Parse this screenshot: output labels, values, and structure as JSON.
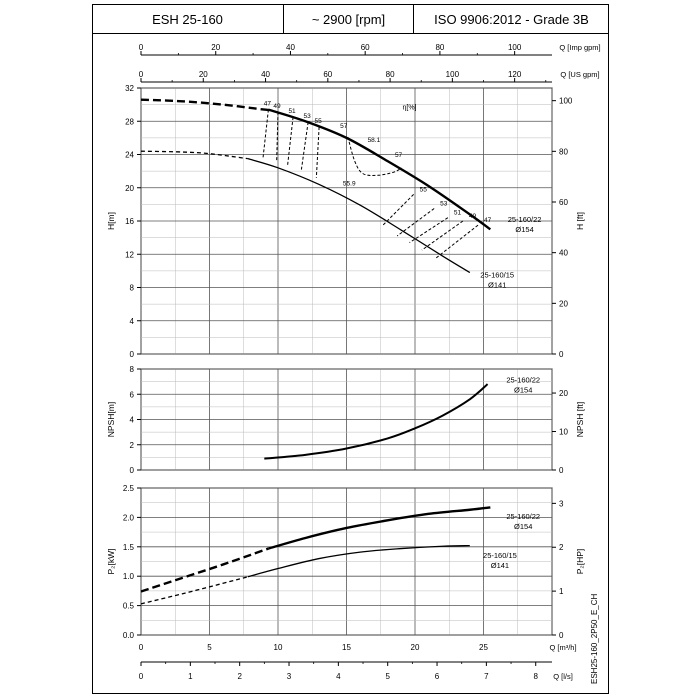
{
  "header": {
    "model": "ESH 25-160",
    "speed": "~ 2900 [rpm]",
    "standard": "ISO 9906:2012 - Grade 3B"
  },
  "doc_code": "ESH25-160_2P50_E_CH",
  "chart_data": [
    {
      "type": "line",
      "panel": "head",
      "top_axes": [
        {
          "label": "Q [Imp gpm]",
          "range": [
            0,
            110
          ],
          "ticks": [
            0,
            20,
            40,
            60,
            80,
            100
          ]
        },
        {
          "label": "Q [US gpm]",
          "range": [
            0,
            132
          ],
          "ticks": [
            0,
            20,
            40,
            60,
            80,
            100,
            120
          ]
        }
      ],
      "x_range": [
        0,
        30
      ],
      "ylabel": "H[m]",
      "ylim": [
        0,
        32
      ],
      "yticks": [
        0,
        4,
        8,
        12,
        16,
        20,
        24,
        28,
        32
      ],
      "y2label": "H [ft]",
      "y2lim": [
        0,
        105
      ],
      "y2ticks": [
        0,
        20,
        40,
        60,
        80,
        100
      ],
      "grid": true,
      "series": [
        {
          "name": "25-160/22 Ø154",
          "label_lines": [
            "25-160/22",
            "Ø154"
          ],
          "dashed": {
            "x": [
              0,
              3,
              6,
              9,
              9.3
            ],
            "y": [
              30.6,
              30.4,
              30,
              29.4,
              29.4
            ]
          },
          "solid": {
            "x": [
              9.3,
              12,
              15,
              18,
              21,
              24,
              25.5
            ],
            "y": [
              29.4,
              28,
              26,
              23.2,
              20.2,
              16.8,
              15
            ]
          }
        },
        {
          "name": "25-160/15 Ø141",
          "label_lines": [
            "25-160/15",
            "Ø141"
          ],
          "dashed": {
            "x": [
              0,
              3,
              5,
              7.8
            ],
            "y": [
              24.4,
              24.3,
              24.1,
              23.5
            ]
          },
          "solid": {
            "x": [
              7.8,
              10,
              13,
              16,
              19,
              22,
              24
            ],
            "y": [
              23.5,
              22.4,
              20.4,
              17.9,
              14.9,
              11.8,
              9.8
            ]
          }
        }
      ],
      "efficiency_title": "η[%]",
      "efficiency_left": [
        {
          "label": "47",
          "x1": 9.3,
          "y1": 29.4,
          "x2": 8.9,
          "y2": 23.5
        },
        {
          "label": "49",
          "x1": 10,
          "y1": 29.1,
          "x2": 9.9,
          "y2": 23.1
        },
        {
          "label": "51",
          "x1": 11.1,
          "y1": 28.5,
          "x2": 10.7,
          "y2": 22.7
        },
        {
          "label": "53",
          "x1": 12.2,
          "y1": 27.9,
          "x2": 11.7,
          "y2": 22.1
        },
        {
          "label": "55",
          "x1": 13,
          "y1": 27.3,
          "x2": 12.8,
          "y2": 21.2
        }
      ],
      "efficiency_right": [
        {
          "label": "55",
          "x1": 19.9,
          "y1": 19.2,
          "x2": 17.6,
          "y2": 15.4
        },
        {
          "label": "53",
          "x1": 21.4,
          "y1": 17.5,
          "x2": 18.7,
          "y2": 14.2
        },
        {
          "label": "51",
          "x1": 22.4,
          "y1": 16.4,
          "x2": 19.6,
          "y2": 13.4
        },
        {
          "label": "49",
          "x1": 23.5,
          "y1": 16,
          "x2": 20.5,
          "y2": 12.5
        },
        {
          "label": "47",
          "x1": 24.6,
          "y1": 15.5,
          "x2": 21.5,
          "y2": 11.5
        }
      ],
      "efficiency_loop": {
        "x": [
          15.1,
          15.6,
          16.2,
          17.3,
          18.5,
          19
        ],
        "y": [
          26.1,
          23.2,
          21.7,
          21.5,
          21.9,
          22.4
        ]
      },
      "efficiency_loop_labels": [
        {
          "label": "57",
          "x": 14.8,
          "y": 27.2
        },
        {
          "label": "58.1",
          "x": 17,
          "y": 25.5
        },
        {
          "label": "57",
          "x": 18.8,
          "y": 23.7
        },
        {
          "label": "55.9",
          "x": 15.2,
          "y": 20.3
        }
      ]
    },
    {
      "type": "line",
      "panel": "npsh",
      "x_range": [
        0,
        30
      ],
      "ylabel": "NPSH[m]",
      "ylim": [
        0,
        8
      ],
      "yticks": [
        0,
        2,
        4,
        6,
        8
      ],
      "y2label": "NPSH [ft]",
      "y2lim": [
        0,
        26.25
      ],
      "y2ticks": [
        0,
        10,
        20
      ],
      "grid": true,
      "series": [
        {
          "name": "25-160/22 Ø154",
          "label_lines": [
            "25-160/22",
            "Ø154"
          ],
          "x": [
            9,
            12,
            15,
            18,
            20,
            22,
            24,
            25.3
          ],
          "y": [
            0.9,
            1.2,
            1.7,
            2.5,
            3.3,
            4.3,
            5.6,
            6.8
          ]
        }
      ]
    },
    {
      "type": "line",
      "panel": "power",
      "xlabel": "Q [m³/h]",
      "x_range": [
        0,
        30
      ],
      "xticks": [
        0,
        5,
        10,
        15,
        20,
        25
      ],
      "bottom_axis": {
        "label": "Q [l/s]",
        "range": [
          0,
          8.33
        ],
        "ticks": [
          0,
          1,
          2,
          3,
          4,
          5,
          6,
          7,
          8
        ]
      },
      "ylabel": "P₂[kW]",
      "ylim": [
        0,
        2.5
      ],
      "yticks": [
        0.0,
        0.5,
        1.0,
        1.5,
        2.0,
        2.5
      ],
      "y2label": "P₂[HP]",
      "y2lim": [
        0,
        3.35
      ],
      "y2ticks": [
        0,
        1,
        2,
        3
      ],
      "grid": true,
      "series": [
        {
          "name": "25-160/22 Ø154",
          "label_lines": [
            "25-160/22",
            "Ø154"
          ],
          "dashed": {
            "x": [
              0,
              3,
              6,
              9.3
            ],
            "y": [
              0.74,
              0.97,
              1.2,
              1.47
            ]
          },
          "solid": {
            "x": [
              9.3,
              12,
              15,
              18,
              21,
              24,
              25.5
            ],
            "y": [
              1.47,
              1.65,
              1.82,
              1.95,
              2.06,
              2.13,
              2.17
            ]
          }
        },
        {
          "name": "25-160/15 Ø141",
          "label_lines": [
            "25-160/15",
            "Ø141"
          ],
          "dashed": {
            "x": [
              0,
              3,
              6,
              7.8
            ],
            "y": [
              0.53,
              0.7,
              0.88,
              0.99
            ]
          },
          "solid": {
            "x": [
              7.8,
              10,
              13,
              16,
              19,
              22,
              24
            ],
            "y": [
              0.99,
              1.13,
              1.3,
              1.41,
              1.47,
              1.51,
              1.52
            ]
          }
        }
      ]
    }
  ]
}
